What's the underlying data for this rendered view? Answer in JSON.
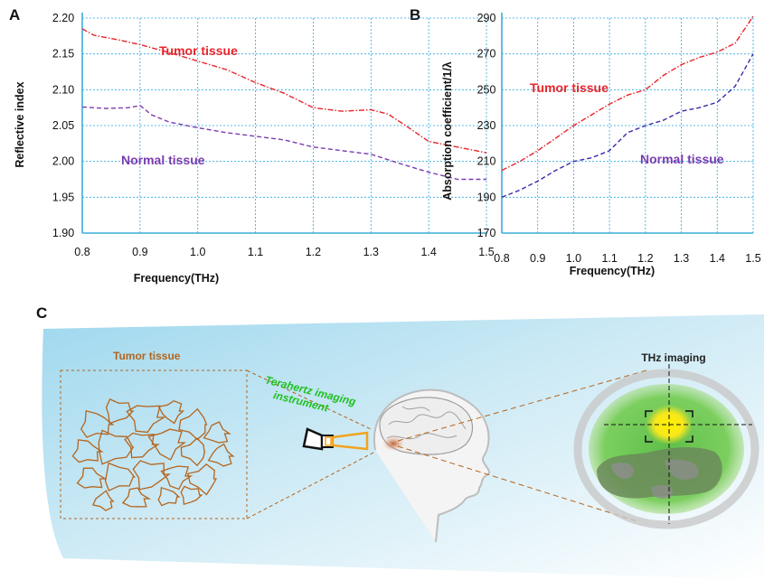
{
  "chart_data": [
    {
      "panel": "A",
      "type": "line",
      "xlabel": "Frequency(THz)",
      "ylabel": "Reflective index",
      "xlim": [
        0.8,
        1.5
      ],
      "ylim": [
        1.9,
        2.2
      ],
      "x_ticks": [
        "0.8",
        "0.9",
        "1.0",
        "1.1",
        "1.2",
        "1.3",
        "1.4",
        "1.5"
      ],
      "y_ticks": [
        "1.90",
        "1.95",
        "2.00",
        "2.05",
        "2.10",
        "2.15",
        "2.20"
      ],
      "grid": true,
      "series": [
        {
          "name": "Tumor tissue",
          "color": "#e8252a",
          "points": [
            [
              0.8,
              2.185
            ],
            [
              0.82,
              2.176
            ],
            [
              0.86,
              2.17
            ],
            [
              0.9,
              2.163
            ],
            [
              0.95,
              2.152
            ],
            [
              1.0,
              2.14
            ],
            [
              1.05,
              2.128
            ],
            [
              1.1,
              2.11
            ],
            [
              1.15,
              2.095
            ],
            [
              1.2,
              2.075
            ],
            [
              1.25,
              2.07
            ],
            [
              1.3,
              2.072
            ],
            [
              1.33,
              2.066
            ],
            [
              1.36,
              2.05
            ],
            [
              1.4,
              2.028
            ],
            [
              1.45,
              2.02
            ],
            [
              1.5,
              2.012
            ]
          ]
        },
        {
          "name": "Normal tissue",
          "color": "#7a3cb0",
          "points": [
            [
              0.8,
              2.076
            ],
            [
              0.84,
              2.074
            ],
            [
              0.88,
              2.075
            ],
            [
              0.9,
              2.078
            ],
            [
              0.92,
              2.065
            ],
            [
              0.95,
              2.055
            ],
            [
              1.0,
              2.047
            ],
            [
              1.05,
              2.04
            ],
            [
              1.1,
              2.035
            ],
            [
              1.15,
              2.03
            ],
            [
              1.2,
              2.02
            ],
            [
              1.25,
              2.015
            ],
            [
              1.3,
              2.01
            ],
            [
              1.35,
              1.997
            ],
            [
              1.4,
              1.985
            ],
            [
              1.45,
              1.975
            ],
            [
              1.5,
              1.975
            ]
          ]
        }
      ]
    },
    {
      "panel": "B",
      "type": "line",
      "xlabel": "Frequency(THz)",
      "ylabel": "Absorption coefficient/1/λ",
      "xlim": [
        0.8,
        1.5
      ],
      "ylim": [
        170,
        290
      ],
      "x_ticks": [
        "0.8",
        "0.9",
        "1.0",
        "1.1",
        "1.2",
        "1.3",
        "1.4",
        "1.5"
      ],
      "y_ticks": [
        "170",
        "190",
        "210",
        "230",
        "250",
        "270",
        "290"
      ],
      "grid": true,
      "series": [
        {
          "name": "Tumor tissue",
          "color": "#e8252a",
          "points": [
            [
              0.8,
              205
            ],
            [
              0.85,
              210
            ],
            [
              0.9,
              216
            ],
            [
              0.95,
              223
            ],
            [
              1.0,
              230
            ],
            [
              1.05,
              236
            ],
            [
              1.1,
              242
            ],
            [
              1.15,
              247
            ],
            [
              1.2,
              250
            ],
            [
              1.25,
              258
            ],
            [
              1.3,
              264
            ],
            [
              1.35,
              268
            ],
            [
              1.4,
              271
            ],
            [
              1.45,
              276
            ],
            [
              1.5,
              291
            ]
          ]
        },
        {
          "name": "Normal tissue",
          "color": "#3a2aa8",
          "points": [
            [
              0.8,
              190
            ],
            [
              0.85,
              194
            ],
            [
              0.9,
              199
            ],
            [
              0.95,
              205
            ],
            [
              1.0,
              210
            ],
            [
              1.05,
              212
            ],
            [
              1.1,
              216
            ],
            [
              1.15,
              226
            ],
            [
              1.2,
              230
            ],
            [
              1.25,
              233
            ],
            [
              1.3,
              238
            ],
            [
              1.35,
              240
            ],
            [
              1.4,
              243
            ],
            [
              1.45,
              252
            ],
            [
              1.5,
              270
            ]
          ]
        }
      ]
    }
  ],
  "series_labels": {
    "A_tumor": "Tumor tissue",
    "A_normal": "Normal tissue",
    "B_tumor": "Tumor tissue",
    "B_normal": "Normal tissue"
  },
  "panels": {
    "A": "A",
    "B": "B",
    "C": "C"
  },
  "illustration": {
    "tumor_label": "Tumor tissue",
    "instrument_label_1": "Terahertz imaging",
    "instrument_label_2": "instrument",
    "thz_label": "THz imaging"
  },
  "colors": {
    "tumor_red": "#e8252a",
    "normal_purple": "#7a3cb0",
    "grid_blue": "#2aa8e0",
    "tumor_brown": "#b5651d",
    "instrument_green": "#1fc01f",
    "probe_orange": "#f2a31c"
  }
}
